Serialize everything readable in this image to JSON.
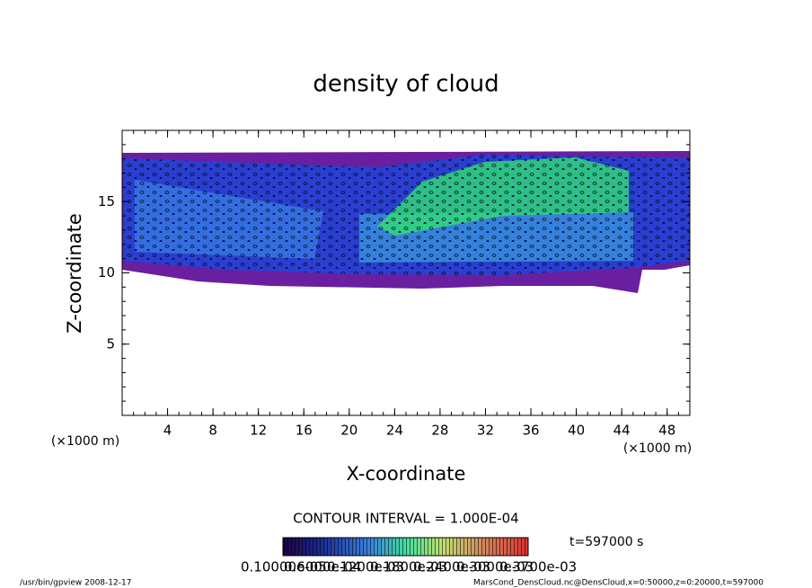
{
  "chart_data": {
    "type": "contour",
    "title": "density of cloud",
    "x_label": "X-coordinate",
    "y_label": "Z-coordinate",
    "x_unit": "(×1000 m)",
    "y_unit": "(×1000 m)",
    "xlim": [
      0,
      50
    ],
    "ylim": [
      0,
      20
    ],
    "xticks": [
      4,
      8,
      12,
      16,
      20,
      24,
      28,
      32,
      36,
      40,
      44,
      48
    ],
    "yticks": [
      5,
      10,
      15
    ],
    "contour_interval": "CONTOUR INTERVAL = 1.000E-04",
    "time_label": "t=597000 s",
    "colorbar_labels": [
      "0.10000e-05",
      "0.6000e-04",
      "0.1200e-03",
      "0.1800e-03",
      "0.2400e-03",
      "0.3000e-03",
      "0.3700e-03"
    ],
    "footer_left": "/usr/bin/gpview  2008-12-17",
    "footer_right": "MarsCond_DensCloud.nc@DensCloud,x=0:50000,z=0:20000,t=597000"
  }
}
